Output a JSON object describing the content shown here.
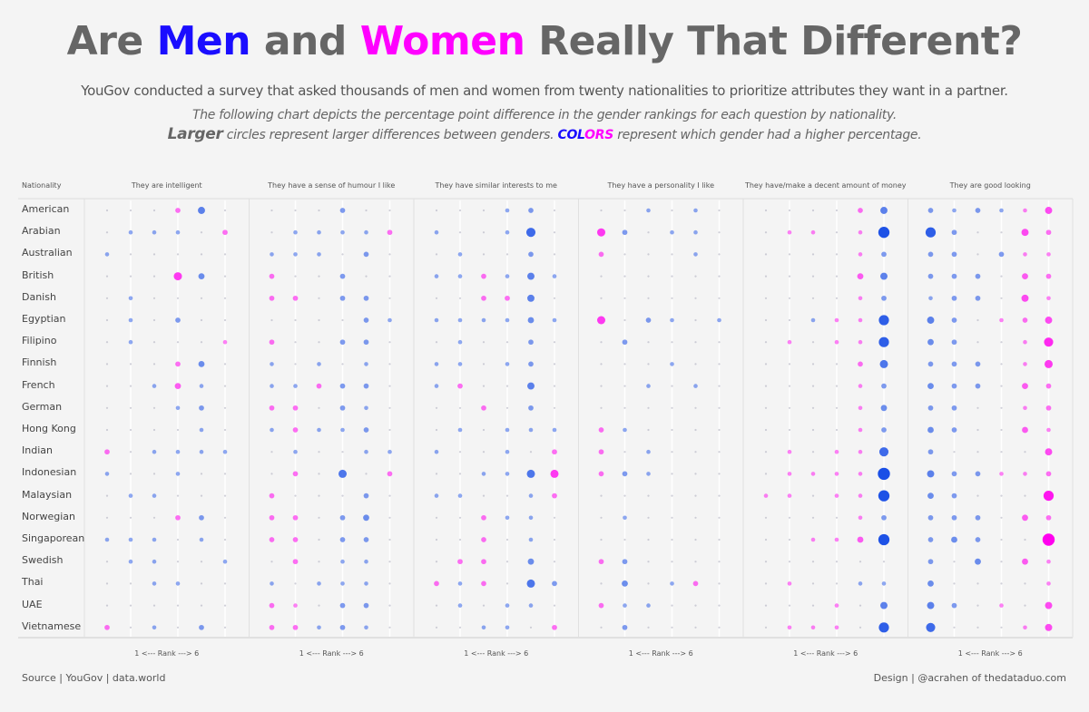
{
  "title": {
    "part1": "Are ",
    "men": "Men",
    "part2": " and ",
    "women": "Women",
    "part3": " Really That Different?"
  },
  "subtitle": "YouGov conducted a survey that asked thousands of men and women from twenty nationalities to prioritize attributes they want in a partner.",
  "description": {
    "line1": "The following chart depicts the percentage point difference in the gender rankings for each question by nationality.",
    "larger": "Larger",
    "line2a": " circles represent larger differences between genders.  ",
    "col": "COL",
    "ors": "ORS",
    "line2b": " represent which gender had a higher percentage."
  },
  "colors": {
    "men": "#1a4fe6",
    "women": "#ff00ee",
    "neutral": "#b0b0c0"
  },
  "footer": {
    "source": "Source | YouGov | data.world",
    "design": "Design | @acrahen of thedataduo.com"
  },
  "chart_data": {
    "type": "scatter",
    "title": "Are Men and Women Really That Different?",
    "row_header": "Nationality",
    "xlabel": "1 <--- Rank ---> 6",
    "ranks": [
      1,
      2,
      3,
      4,
      5,
      6
    ],
    "encoding": "value = percentage point difference (positive: men higher, blue; negative: women higher, pink); circle size = magnitude",
    "questions": [
      "They are intelligent",
      "They have a sense of humour I like",
      "They have similar interests to me",
      "They have a personality I like",
      "They have/make a decent amount of money",
      "They are good looking"
    ],
    "nationalities": [
      "American",
      "Arabian",
      "Australian",
      "British",
      "Danish",
      "Egyptian",
      "Filipino",
      "Finnish",
      "French",
      "German",
      "Hong Kong",
      "Indian",
      "Indonesian",
      "Malaysian",
      "Norwegian",
      "Singaporean",
      "Swedish",
      "Thai",
      "UAE",
      "Vietnamese"
    ],
    "values": [
      [
        [
          1,
          1,
          -1,
          -3,
          5,
          1
        ],
        [
          1,
          2,
          2,
          2,
          1,
          -3
        ],
        [
          2,
          -1,
          1,
          1,
          1,
          1
        ],
        [
          1,
          1,
          1,
          -6,
          4,
          1
        ],
        [
          1,
          2,
          1,
          1,
          1,
          1
        ],
        [
          1,
          2,
          1,
          3,
          1,
          1
        ],
        [
          1,
          2,
          1,
          1,
          1,
          -2
        ],
        [
          1,
          1,
          1,
          -3,
          4,
          1
        ],
        [
          1,
          1,
          2,
          -4,
          2,
          1
        ],
        [
          1,
          1,
          1,
          2,
          3,
          1
        ],
        [
          1,
          1,
          1,
          1,
          2,
          1
        ],
        [
          -3,
          1,
          2,
          2,
          2,
          2
        ],
        [
          2,
          1,
          1,
          2,
          1,
          1
        ],
        [
          1,
          2,
          2,
          1,
          1,
          1
        ],
        [
          1,
          1,
          1,
          -3,
          3,
          1
        ],
        [
          2,
          2,
          2,
          1,
          2,
          1
        ],
        [
          1,
          2,
          2,
          1,
          1,
          2
        ],
        [
          1,
          1,
          2,
          2,
          -1,
          1
        ],
        [
          1,
          1,
          1,
          1,
          1,
          1
        ],
        [
          -3,
          1,
          2,
          1,
          3,
          1
        ]
      ],
      [
        [
          -1,
          -1,
          1,
          3,
          1,
          1
        ],
        [
          1,
          2,
          2,
          2,
          2,
          -3
        ],
        [
          2,
          2,
          2,
          1,
          3,
          1
        ],
        [
          -3,
          1,
          1,
          3,
          1,
          1
        ],
        [
          -3,
          -3,
          1,
          3,
          3,
          1
        ],
        [
          1,
          1,
          1,
          1,
          3,
          2
        ],
        [
          -3,
          -1,
          1,
          3,
          3,
          1
        ],
        [
          2,
          1,
          2,
          1,
          2,
          1
        ],
        [
          2,
          2,
          -3,
          3,
          3,
          1
        ],
        [
          -3,
          -3,
          1,
          3,
          2,
          1
        ],
        [
          2,
          -3,
          2,
          2,
          3,
          1
        ],
        [
          1,
          2,
          1,
          1,
          2,
          2
        ],
        [
          1,
          -3,
          1,
          6,
          1,
          -3
        ],
        [
          -3,
          1,
          1,
          1,
          3,
          1
        ],
        [
          -3,
          -3,
          1,
          3,
          4,
          1
        ],
        [
          -3,
          -3,
          1,
          3,
          3,
          1
        ],
        [
          1,
          -3,
          1,
          2,
          2,
          1
        ],
        [
          2,
          1,
          2,
          2,
          2,
          1
        ],
        [
          -3,
          -2,
          1,
          3,
          3,
          1
        ],
        [
          -3,
          -3,
          2,
          3,
          2,
          1
        ]
      ],
      [
        [
          -1,
          1,
          1,
          2,
          3,
          1
        ],
        [
          2,
          1,
          -1,
          2,
          7,
          1
        ],
        [
          1,
          2,
          -1,
          1,
          3,
          1
        ],
        [
          2,
          2,
          -3,
          2,
          5,
          2
        ],
        [
          1,
          1,
          -3,
          -3,
          5,
          1
        ],
        [
          2,
          2,
          2,
          2,
          4,
          2
        ],
        [
          1,
          2,
          1,
          1,
          3,
          1
        ],
        [
          2,
          2,
          -1,
          2,
          3,
          1
        ],
        [
          2,
          -3,
          1,
          1,
          5,
          1
        ],
        [
          1,
          1,
          -3,
          1,
          3,
          1
        ],
        [
          1,
          2,
          1,
          2,
          2,
          2
        ],
        [
          2,
          1,
          1,
          2,
          1,
          -3
        ],
        [
          1,
          1,
          2,
          2,
          6,
          -6
        ],
        [
          2,
          2,
          -1,
          1,
          2,
          -3
        ],
        [
          1,
          1,
          -3,
          2,
          2,
          1
        ],
        [
          1,
          1,
          -3,
          1,
          2,
          1
        ],
        [
          1,
          -3,
          -3,
          1,
          4,
          1
        ],
        [
          -3,
          2,
          -3,
          1,
          6,
          3
        ],
        [
          1,
          2,
          -1,
          2,
          2,
          1
        ],
        [
          1,
          1,
          2,
          2,
          1,
          -3
        ]
      ],
      [
        [
          -1,
          1,
          2,
          1,
          2,
          1
        ],
        [
          -6,
          3,
          1,
          2,
          2,
          1
        ],
        [
          -3,
          1,
          1,
          1,
          2,
          1
        ],
        [
          1,
          1,
          1,
          1,
          1,
          1
        ],
        [
          1,
          1,
          1,
          1,
          1,
          1
        ],
        [
          -6,
          1,
          3,
          2,
          1,
          2
        ],
        [
          1,
          3,
          1,
          1,
          1,
          1
        ],
        [
          -1,
          1,
          1,
          2,
          1,
          1
        ],
        [
          -1,
          1,
          2,
          1,
          2,
          1
        ],
        [
          -1,
          1,
          1,
          1,
          1,
          1
        ],
        [
          -3,
          2,
          1,
          1,
          1,
          1
        ],
        [
          -3,
          1,
          2,
          1,
          1,
          1
        ],
        [
          -3,
          3,
          2,
          1,
          1,
          1
        ],
        [
          1,
          1,
          1,
          1,
          1,
          1
        ],
        [
          1,
          2,
          1,
          1,
          1,
          1
        ],
        [
          1,
          1,
          1,
          1,
          1,
          1
        ],
        [
          -3,
          3,
          1,
          1,
          1,
          1
        ],
        [
          1,
          4,
          1,
          2,
          -3,
          1
        ],
        [
          -3,
          2,
          2,
          1,
          1,
          1
        ],
        [
          1,
          3,
          1,
          1,
          -1,
          1
        ]
      ],
      [
        [
          1,
          1,
          1,
          1,
          -3,
          5
        ],
        [
          1,
          -2,
          -2,
          1,
          -2,
          9
        ],
        [
          1,
          1,
          1,
          1,
          -2,
          3
        ],
        [
          1,
          1,
          1,
          1,
          -4,
          5
        ],
        [
          1,
          1,
          1,
          1,
          -2,
          3
        ],
        [
          1,
          1,
          2,
          -2,
          -2,
          8
        ],
        [
          1,
          -2,
          1,
          -2,
          -2,
          8
        ],
        [
          1,
          1,
          1,
          1,
          -3,
          6
        ],
        [
          1,
          1,
          1,
          1,
          -2,
          3
        ],
        [
          1,
          1,
          1,
          1,
          -2,
          4
        ],
        [
          1,
          1,
          1,
          1,
          -2,
          3
        ],
        [
          1,
          -2,
          1,
          -2,
          -2,
          7
        ],
        [
          1,
          -2,
          -2,
          -2,
          -2,
          10
        ],
        [
          -2,
          -2,
          1,
          -2,
          -2,
          9
        ],
        [
          1,
          1,
          1,
          1,
          -2,
          3
        ],
        [
          1,
          1,
          -2,
          -2,
          -4,
          9
        ],
        [
          1,
          1,
          1,
          1,
          1,
          1
        ],
        [
          1,
          -2,
          1,
          1,
          2,
          2
        ],
        [
          1,
          1,
          1,
          -2,
          1,
          5
        ],
        [
          -1,
          -2,
          -2,
          -2,
          1,
          8
        ]
      ],
      [
        [
          3,
          2,
          3,
          2,
          -2,
          -5
        ],
        [
          8,
          3,
          1,
          1,
          -5,
          -3
        ],
        [
          3,
          3,
          1,
          3,
          -2,
          -2
        ],
        [
          3,
          3,
          3,
          1,
          -4,
          -3
        ],
        [
          2,
          3,
          3,
          1,
          -5,
          -2
        ],
        [
          5,
          3,
          1,
          -2,
          -3,
          -5
        ],
        [
          4,
          3,
          1,
          1,
          -2,
          -7
        ],
        [
          3,
          3,
          3,
          1,
          -2,
          -6
        ],
        [
          4,
          3,
          3,
          1,
          -4,
          -3
        ],
        [
          3,
          3,
          1,
          1,
          -2,
          -3
        ],
        [
          4,
          3,
          1,
          1,
          -4,
          -2
        ],
        [
          3,
          1,
          1,
          1,
          1,
          -5
        ],
        [
          5,
          3,
          3,
          -2,
          -2,
          -3
        ],
        [
          4,
          3,
          1,
          1,
          1,
          -8
        ],
        [
          3,
          3,
          3,
          1,
          -4,
          -3
        ],
        [
          3,
          4,
          3,
          1,
          1,
          -10
        ],
        [
          3,
          1,
          4,
          1,
          -4,
          -2
        ],
        [
          4,
          1,
          1,
          1,
          1,
          -2
        ],
        [
          5,
          3,
          1,
          -2,
          1,
          -5
        ],
        [
          7,
          1,
          1,
          1,
          -2,
          -5
        ]
      ]
    ]
  }
}
